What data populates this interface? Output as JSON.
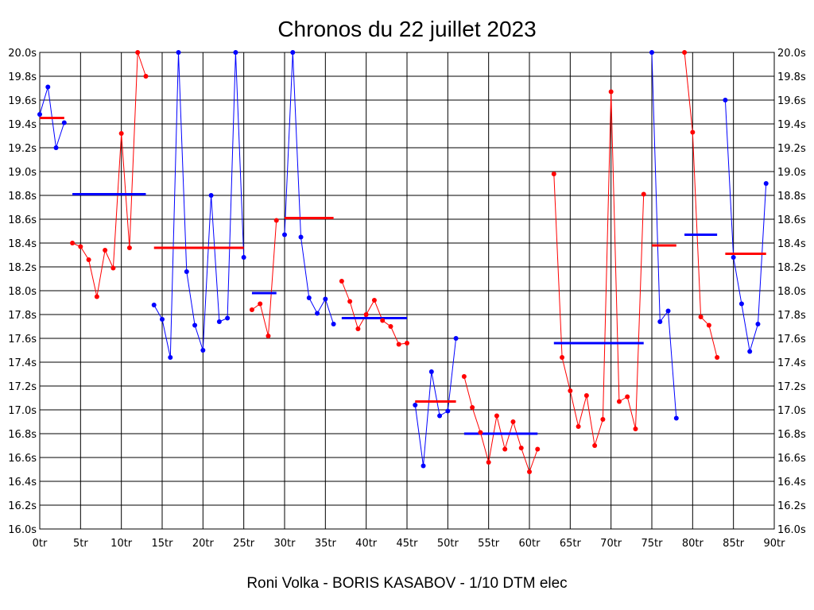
{
  "chart_data": {
    "type": "line",
    "title": "Chronos du 22 juillet 2023",
    "subtitle": "Roni Volka - BORIS KASABOV - 1/10 DTM elec",
    "xlim": [
      0,
      90
    ],
    "ylim": [
      16.0,
      20.0
    ],
    "x_ticks": [
      0,
      5,
      10,
      15,
      20,
      25,
      30,
      35,
      40,
      45,
      50,
      55,
      60,
      65,
      70,
      75,
      80,
      85,
      90
    ],
    "x_tick_labels": [
      "0tr",
      "5tr",
      "10tr",
      "15tr",
      "20tr",
      "25tr",
      "30tr",
      "35tr",
      "40tr",
      "45tr",
      "50tr",
      "55tr",
      "60tr",
      "65tr",
      "70tr",
      "75tr",
      "80tr",
      "85tr",
      "90tr"
    ],
    "y_ticks": [
      16.0,
      16.2,
      16.4,
      16.6,
      16.8,
      17.0,
      17.2,
      17.4,
      17.6,
      17.8,
      18.0,
      18.2,
      18.4,
      18.6,
      18.8,
      19.0,
      19.2,
      19.4,
      19.6,
      19.8,
      20.0
    ],
    "y_tick_labels": [
      "16.0s",
      "16.2s",
      "16.4s",
      "16.6s",
      "16.8s",
      "17.0s",
      "17.2s",
      "17.4s",
      "17.6s",
      "17.8s",
      "18.0s",
      "18.2s",
      "18.4s",
      "18.6s",
      "18.8s",
      "19.0s",
      "19.2s",
      "19.4s",
      "19.6s",
      "19.8s",
      "20.0s"
    ],
    "grid": true,
    "colors": {
      "red": "#ff0000",
      "blue": "#0000ff"
    },
    "series": [
      {
        "color": "#0000ff",
        "points": [
          [
            0,
            19.48
          ],
          [
            1,
            19.71
          ],
          [
            2,
            19.2
          ],
          [
            3,
            19.41
          ]
        ],
        "mean": 19.45,
        "mean_color": "#ff0000",
        "mean_range": [
          0,
          3
        ]
      },
      {
        "color": "#ff0000",
        "points": [
          [
            4,
            18.4
          ],
          [
            5,
            18.37
          ],
          [
            6,
            18.26
          ],
          [
            7,
            17.95
          ],
          [
            8,
            18.34
          ],
          [
            9,
            18.19
          ],
          [
            10,
            19.32
          ],
          [
            11,
            18.36
          ],
          [
            12,
            20.0
          ],
          [
            13,
            19.8
          ]
        ],
        "mean": 18.81,
        "mean_color": "#0000ff",
        "mean_range": [
          4,
          13
        ]
      },
      {
        "color": "#0000ff",
        "points": [
          [
            14,
            17.88
          ],
          [
            15,
            17.76
          ],
          [
            16,
            17.44
          ],
          [
            17,
            20.0
          ],
          [
            18,
            18.16
          ],
          [
            19,
            17.71
          ],
          [
            20,
            17.5
          ],
          [
            21,
            18.8
          ],
          [
            22,
            17.74
          ],
          [
            23,
            17.77
          ],
          [
            24,
            20.0
          ],
          [
            25,
            18.28
          ]
        ],
        "mean": 18.36,
        "mean_color": "#ff0000",
        "mean_range": [
          14,
          25
        ]
      },
      {
        "color": "#ff0000",
        "points": [
          [
            26,
            17.84
          ],
          [
            27,
            17.89
          ],
          [
            28,
            17.62
          ],
          [
            29,
            18.59
          ]
        ],
        "mean": 17.98,
        "mean_color": "#0000ff",
        "mean_range": [
          26,
          29
        ]
      },
      {
        "color": "#0000ff",
        "points": [
          [
            30,
            18.47
          ],
          [
            31,
            20.0
          ],
          [
            32,
            18.45
          ],
          [
            33,
            17.94
          ],
          [
            34,
            17.81
          ],
          [
            35,
            17.93
          ],
          [
            36,
            17.72
          ]
        ],
        "mean": 18.61,
        "mean_color": "#ff0000",
        "mean_range": [
          30,
          36
        ]
      },
      {
        "color": "#ff0000",
        "points": [
          [
            37,
            18.08
          ],
          [
            38,
            17.91
          ],
          [
            39,
            17.68
          ],
          [
            40,
            17.8
          ],
          [
            41,
            17.92
          ],
          [
            42,
            17.75
          ],
          [
            43,
            17.7
          ],
          [
            44,
            17.55
          ],
          [
            45,
            17.56
          ]
        ],
        "mean": 17.77,
        "mean_color": "#0000ff",
        "mean_range": [
          37,
          45
        ]
      },
      {
        "color": "#0000ff",
        "points": [
          [
            46,
            17.04
          ],
          [
            47,
            16.53
          ],
          [
            48,
            17.32
          ],
          [
            49,
            16.95
          ],
          [
            50,
            16.99
          ],
          [
            51,
            17.6
          ]
        ],
        "mean": 17.07,
        "mean_color": "#ff0000",
        "mean_range": [
          46,
          51
        ]
      },
      {
        "color": "#ff0000",
        "points": [
          [
            52,
            17.28
          ],
          [
            53,
            17.02
          ],
          [
            54,
            16.81
          ],
          [
            55,
            16.56
          ],
          [
            56,
            16.95
          ],
          [
            57,
            16.67
          ],
          [
            58,
            16.9
          ],
          [
            59,
            16.68
          ],
          [
            60,
            16.48
          ],
          [
            61,
            16.67
          ]
        ],
        "mean": 16.8,
        "mean_color": "#0000ff",
        "mean_range": [
          52,
          61
        ]
      },
      {
        "color": "#ff0000",
        "points": [
          [
            63,
            18.98
          ],
          [
            64,
            17.44
          ],
          [
            65,
            17.16
          ],
          [
            66,
            16.86
          ],
          [
            67,
            17.12
          ],
          [
            68,
            16.7
          ],
          [
            69,
            16.92
          ],
          [
            70,
            19.67
          ],
          [
            71,
            17.07
          ],
          [
            72,
            17.11
          ],
          [
            73,
            16.84
          ],
          [
            74,
            18.81
          ]
        ],
        "mean": 17.56,
        "mean_color": "#0000ff",
        "mean_range": [
          63,
          74
        ]
      },
      {
        "color": "#0000ff",
        "points": [
          [
            75,
            20.0
          ],
          [
            76,
            17.74
          ],
          [
            77,
            17.83
          ],
          [
            78,
            16.93
          ]
        ],
        "mean": 18.38,
        "mean_color": "#ff0000",
        "mean_range": [
          75,
          78
        ]
      },
      {
        "color": "#ff0000",
        "points": [
          [
            79,
            20.0
          ],
          [
            80,
            19.33
          ],
          [
            81,
            17.78
          ],
          [
            82,
            17.71
          ],
          [
            83,
            17.44
          ]
        ],
        "mean": 18.47,
        "mean_color": "#0000ff",
        "mean_range": [
          79,
          83
        ]
      },
      {
        "color": "#0000ff",
        "points": [
          [
            84,
            19.6
          ],
          [
            85,
            18.28
          ],
          [
            86,
            17.89
          ],
          [
            87,
            17.49
          ],
          [
            88,
            17.72
          ],
          [
            89,
            18.9
          ]
        ],
        "mean": 18.31,
        "mean_color": "#ff0000",
        "mean_range": [
          84,
          89
        ]
      }
    ]
  }
}
